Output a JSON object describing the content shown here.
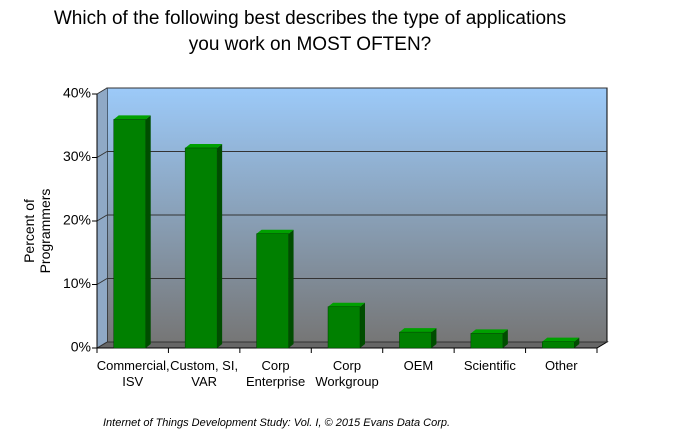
{
  "chart_data": {
    "type": "bar3d",
    "title": "Which of the following best describes the type of applications you work on MOST OFTEN?",
    "y_label": "Percent of Programmers",
    "footer": "Internet of Things Development Study: Vol. I, © 2015 Evans Data Corp.",
    "categories": [
      "Commercial, ISV",
      "Custom, SI, VAR",
      "Corp Enterprise",
      "Corp Workgroup",
      "OEM",
      "Scientific",
      "Other"
    ],
    "values": [
      36,
      31.5,
      18,
      6.5,
      2.5,
      2.3,
      1
    ],
    "color": "#008000",
    "ylim": [
      0,
      40
    ],
    "yticks": [
      {
        "value": 0,
        "label": "0%"
      },
      {
        "value": 10,
        "label": "10%"
      },
      {
        "value": 20,
        "label": "20%"
      },
      {
        "value": 30,
        "label": "30%"
      },
      {
        "value": 40,
        "label": "40%"
      }
    ],
    "grid": true
  }
}
